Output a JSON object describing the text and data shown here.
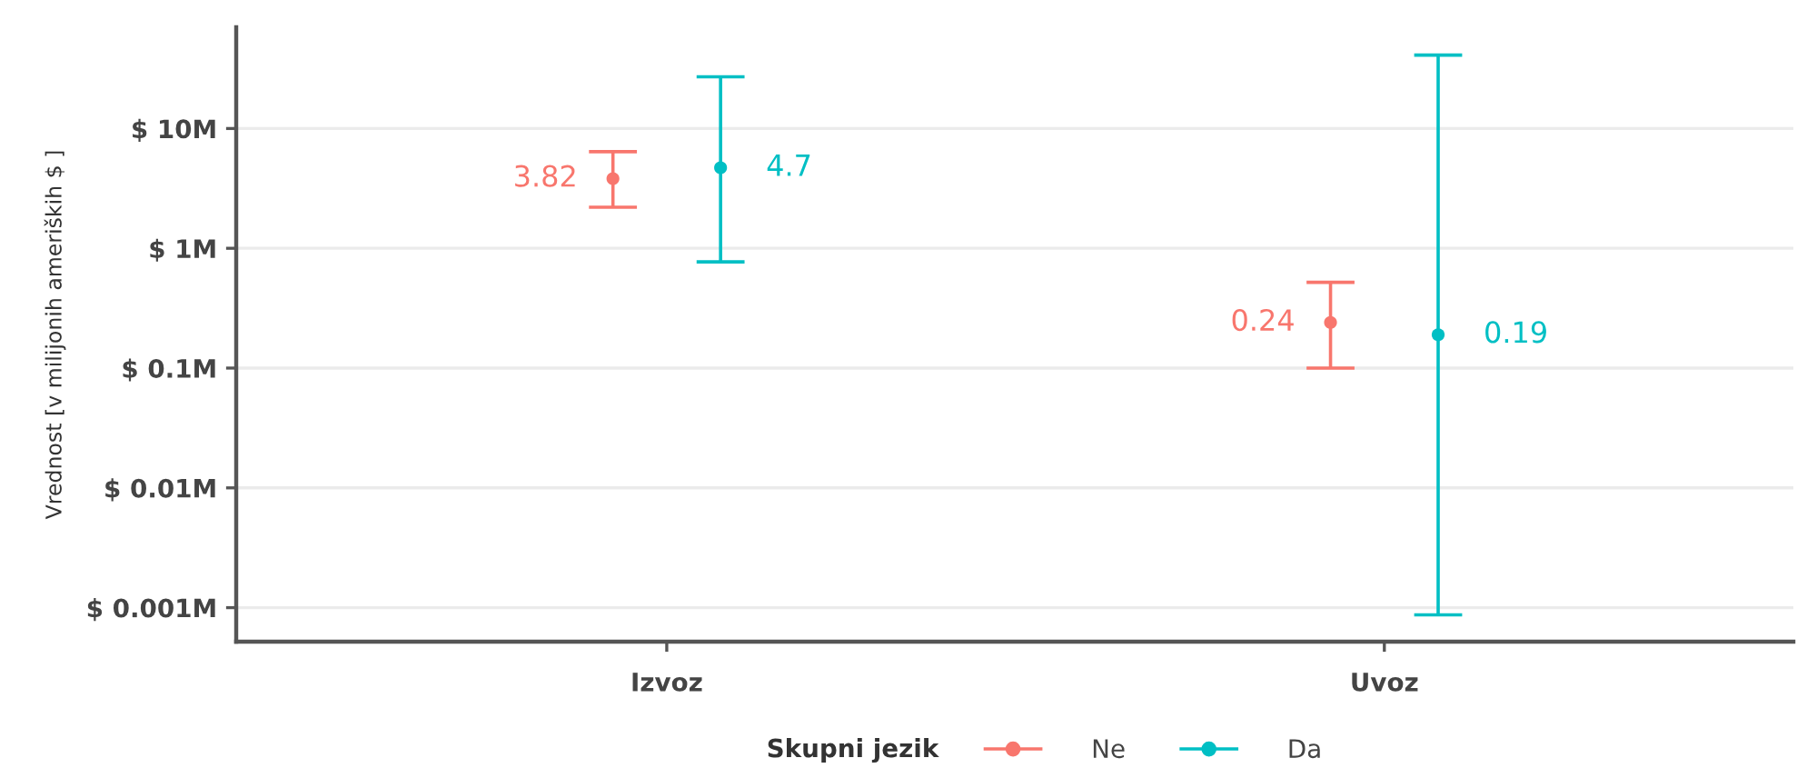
{
  "chart_data": {
    "type": "scatter",
    "categories": [
      "Izvoz",
      "Uvoz"
    ],
    "series": [
      {
        "name": "Ne",
        "color": "#f8766d",
        "values": [
          3.82,
          0.24
        ],
        "errors": [
          [
            2.2,
            6.4
          ],
          [
            0.1,
            0.52
          ]
        ]
      },
      {
        "name": "Da",
        "color": "#00bfc4",
        "values": [
          4.7,
          0.19
        ],
        "errors": [
          [
            0.77,
            27
          ],
          [
            0.00087,
            41
          ]
        ]
      }
    ],
    "ylabel": "Vrednost [v milijonih ameriških $ ]",
    "legend_title": "Skupni jezik",
    "log": true,
    "ylim": [
      0.00052,
      70
    ],
    "yticks": [
      {
        "value": 0.001,
        "label": "$ 0.001M"
      },
      {
        "value": 0.01,
        "label": "$ 0.01M"
      },
      {
        "value": 0.1,
        "label": "$ 0.1M"
      },
      {
        "value": 1,
        "label": "$ 1M"
      },
      {
        "value": 10,
        "label": "$ 10M"
      }
    ],
    "grid": "y",
    "legend": "bottom",
    "marker": "circle",
    "data_labels": true
  }
}
